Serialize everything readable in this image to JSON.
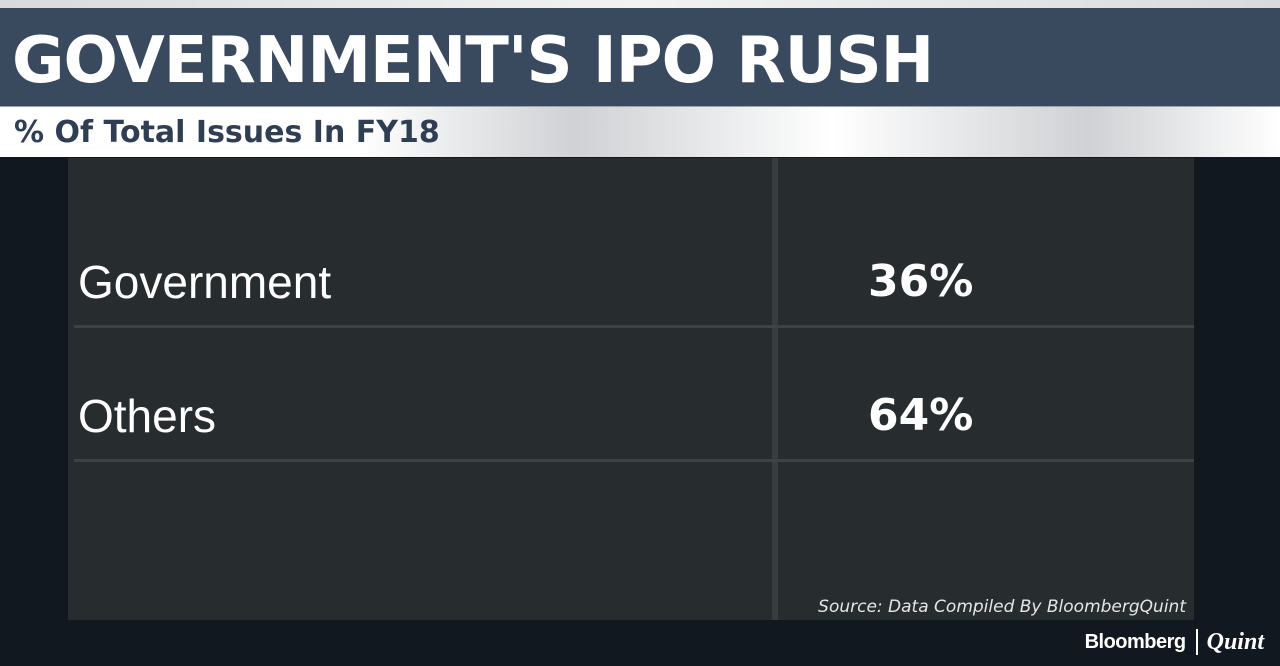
{
  "header": {
    "title": "GOVERNMENT'S IPO RUSH",
    "subtitle": "% Of Total Issues In FY18"
  },
  "chart_data": {
    "type": "table",
    "title": "GOVERNMENT'S IPO RUSH",
    "subtitle": "% Of Total Issues In FY18",
    "rows": [
      {
        "label": "Government",
        "value": 36,
        "display": "36%"
      },
      {
        "label": "Others",
        "value": 64,
        "display": "64%"
      }
    ],
    "unit": "%"
  },
  "footer": {
    "source": "Source: Data Compiled By BloombergQuint",
    "logo_left": "Bloomberg",
    "logo_right": "Quint"
  },
  "colors": {
    "background": "#121820",
    "title_bar": "#3a4a5e",
    "table_panel": "#272c2f",
    "text": "#ffffff"
  }
}
